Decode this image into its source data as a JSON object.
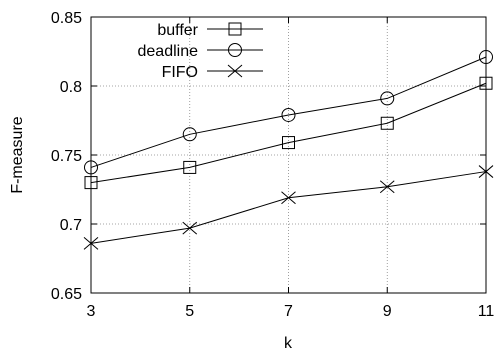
{
  "chart_data": {
    "type": "line",
    "title": "",
    "xlabel": "k",
    "ylabel": "F-measure",
    "x": [
      3,
      5,
      7,
      9,
      11
    ],
    "xlim": [
      3,
      11
    ],
    "ylim": [
      0.65,
      0.85
    ],
    "xticks": [
      "3",
      "5",
      "7",
      "9",
      "11"
    ],
    "yticks": [
      "0.65",
      "0.7",
      "0.75",
      "0.8",
      "0.85"
    ],
    "grid": true,
    "legend_position": "top-left",
    "series": [
      {
        "name": "buffer",
        "marker": "square",
        "values": [
          0.73,
          0.741,
          0.759,
          0.773,
          0.802
        ]
      },
      {
        "name": "deadline",
        "marker": "circle",
        "values": [
          0.741,
          0.765,
          0.779,
          0.791,
          0.821
        ]
      },
      {
        "name": "FIFO",
        "marker": "cross",
        "values": [
          0.686,
          0.697,
          0.719,
          0.727,
          0.738
        ]
      }
    ]
  }
}
